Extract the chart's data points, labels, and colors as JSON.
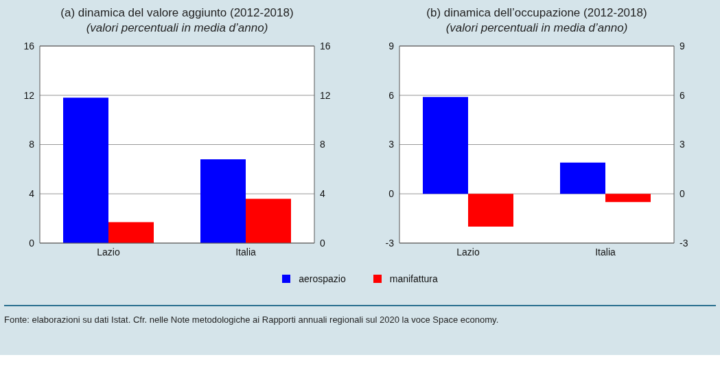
{
  "chart_data": [
    {
      "type": "bar",
      "title": "(a) dinamica del valore aggiunto (2012-2018)",
      "subtitle": "(valori percentuali in media d’anno)",
      "categories": [
        "Lazio",
        "Italia"
      ],
      "series": [
        {
          "name": "aerospazio",
          "color": "#0000ff",
          "values": [
            11.8,
            6.8
          ]
        },
        {
          "name": "manifattura",
          "color": "#ff0000",
          "values": [
            1.7,
            3.6
          ]
        }
      ],
      "ylim": [
        0,
        16
      ],
      "yticks": [
        0,
        4,
        8,
        12,
        16
      ],
      "y2lim": [
        0,
        16
      ],
      "y2ticks": [
        0,
        4,
        8,
        12,
        16
      ],
      "grid": "y",
      "legend": "bottom"
    },
    {
      "type": "bar",
      "title": "(b) dinamica dell’occupazione (2012-2018)",
      "subtitle": "(valori percentuali in media d’anno)",
      "categories": [
        "Lazio",
        "Italia"
      ],
      "series": [
        {
          "color": "#0000ff",
          "values": [
            5.9,
            1.9
          ]
        },
        {
          "color": "#ff0000",
          "values": [
            -2.0,
            -0.5
          ]
        }
      ],
      "ylim": [
        -3,
        9
      ],
      "yticks": [
        -3,
        0,
        3,
        6,
        9
      ],
      "y2lim": [
        -3,
        9
      ],
      "y2ticks": [
        -3,
        0,
        3,
        6,
        9
      ],
      "grid": "y",
      "annotations": [
        "Fonte: elaborazioni su dati Istat. Cfr. nelle Note metodologiche ai Rapporti annuali regionali sul 2020 la voce Space economy."
      ]
    }
  ]
}
